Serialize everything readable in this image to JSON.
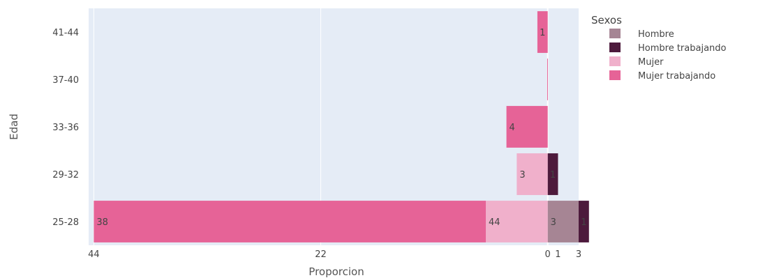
{
  "chart_data": {
    "type": "bar",
    "orientation": "horizontal",
    "barmode": "relative",
    "xlabel": "Proporcion",
    "ylabel": "Edad",
    "categories": [
      "25-28",
      "29-32",
      "33-36",
      "37-40",
      "41-44"
    ],
    "xlim": [
      -44.5,
      3.0
    ],
    "x_ticks": [
      {
        "value": -44,
        "label": "44"
      },
      {
        "value": -22,
        "label": "22"
      },
      {
        "value": 0,
        "label": "0"
      },
      {
        "value": 1,
        "label": "1"
      },
      {
        "value": 3,
        "label": "3"
      }
    ],
    "legend": {
      "title": "Sexos",
      "position": "top-right"
    },
    "grid": true,
    "series": [
      {
        "name": "Hombre",
        "color": "#a68594",
        "values": [
          3,
          0,
          0,
          0,
          0
        ],
        "labels": [
          "3",
          "",
          "",
          "",
          ""
        ]
      },
      {
        "name": "Hombre trabajando",
        "color": "#4d1a3c",
        "values": [
          1,
          1,
          0,
          0,
          0
        ],
        "labels": [
          "1",
          "1",
          "",
          "",
          ""
        ]
      },
      {
        "name": "Mujer",
        "color": "#f0b0cb",
        "values": [
          -6,
          -3,
          0,
          0,
          0
        ],
        "labels": [
          "44",
          "3",
          "",
          "",
          ""
        ]
      },
      {
        "name": "Mujer trabajando",
        "color": "#e66397",
        "values": [
          -38,
          0,
          -4,
          -0.05,
          -1
        ],
        "labels": [
          "38",
          "",
          "4",
          "",
          "1"
        ]
      }
    ]
  }
}
